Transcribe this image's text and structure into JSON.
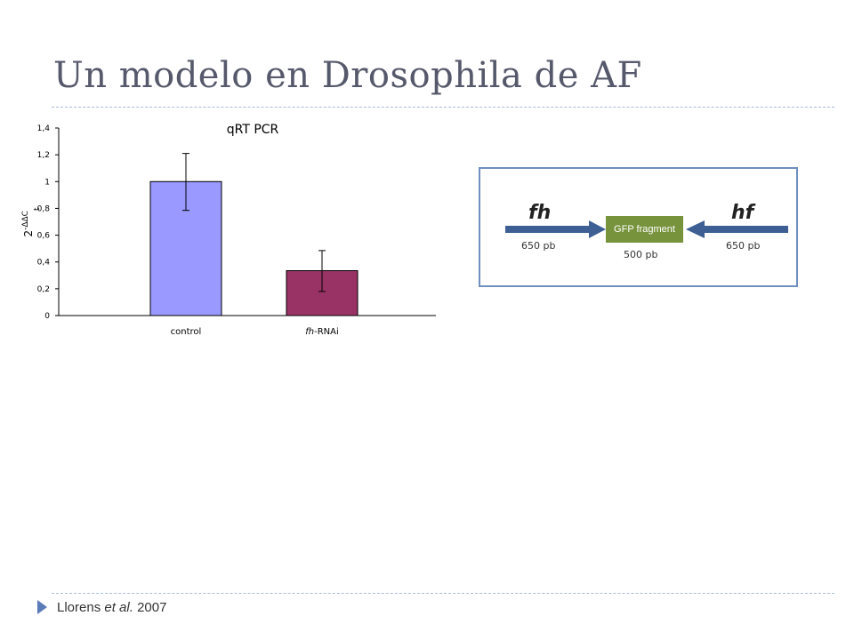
{
  "slide": {
    "title": "Un modelo en Drosophila de AF",
    "citation": {
      "prefix": "Llorens ",
      "italic": "et al.",
      "suffix": " 2007"
    }
  },
  "chart_data": {
    "type": "bar",
    "title": "qRT PCR",
    "ylabel_base": "2",
    "ylabel_sup": "-ΔΔC",
    "ylabel_sub": "t",
    "categories": [
      {
        "prefix": "",
        "italic": "",
        "suffix": "control"
      },
      {
        "prefix": "",
        "italic": "fh",
        "suffix": "-RNAi"
      }
    ],
    "values": [
      1.0,
      0.335
    ],
    "error_high": [
      1.21,
      0.485
    ],
    "error_low": [
      0.785,
      0.18
    ],
    "bar_colors": [
      "#9999ff",
      "#993366"
    ],
    "ylim": [
      0,
      1.4
    ],
    "yticks": [
      "0",
      "0,2",
      "0,4",
      "0,6",
      "0,8",
      "1",
      "1,2",
      "1,4"
    ],
    "grid": false
  },
  "diagram": {
    "left_gene": "fh",
    "right_gene": "hf",
    "center_label": "GFP fragment",
    "left_size": "650 pb",
    "center_size": "500 pb",
    "right_size": "650 pb",
    "colors": {
      "arrow": "#3d5f93",
      "gfp": "#77933c",
      "border": "#6f8fc0"
    }
  },
  "colors": {
    "title": "#56596b",
    "accent": "#5b7cb8"
  }
}
